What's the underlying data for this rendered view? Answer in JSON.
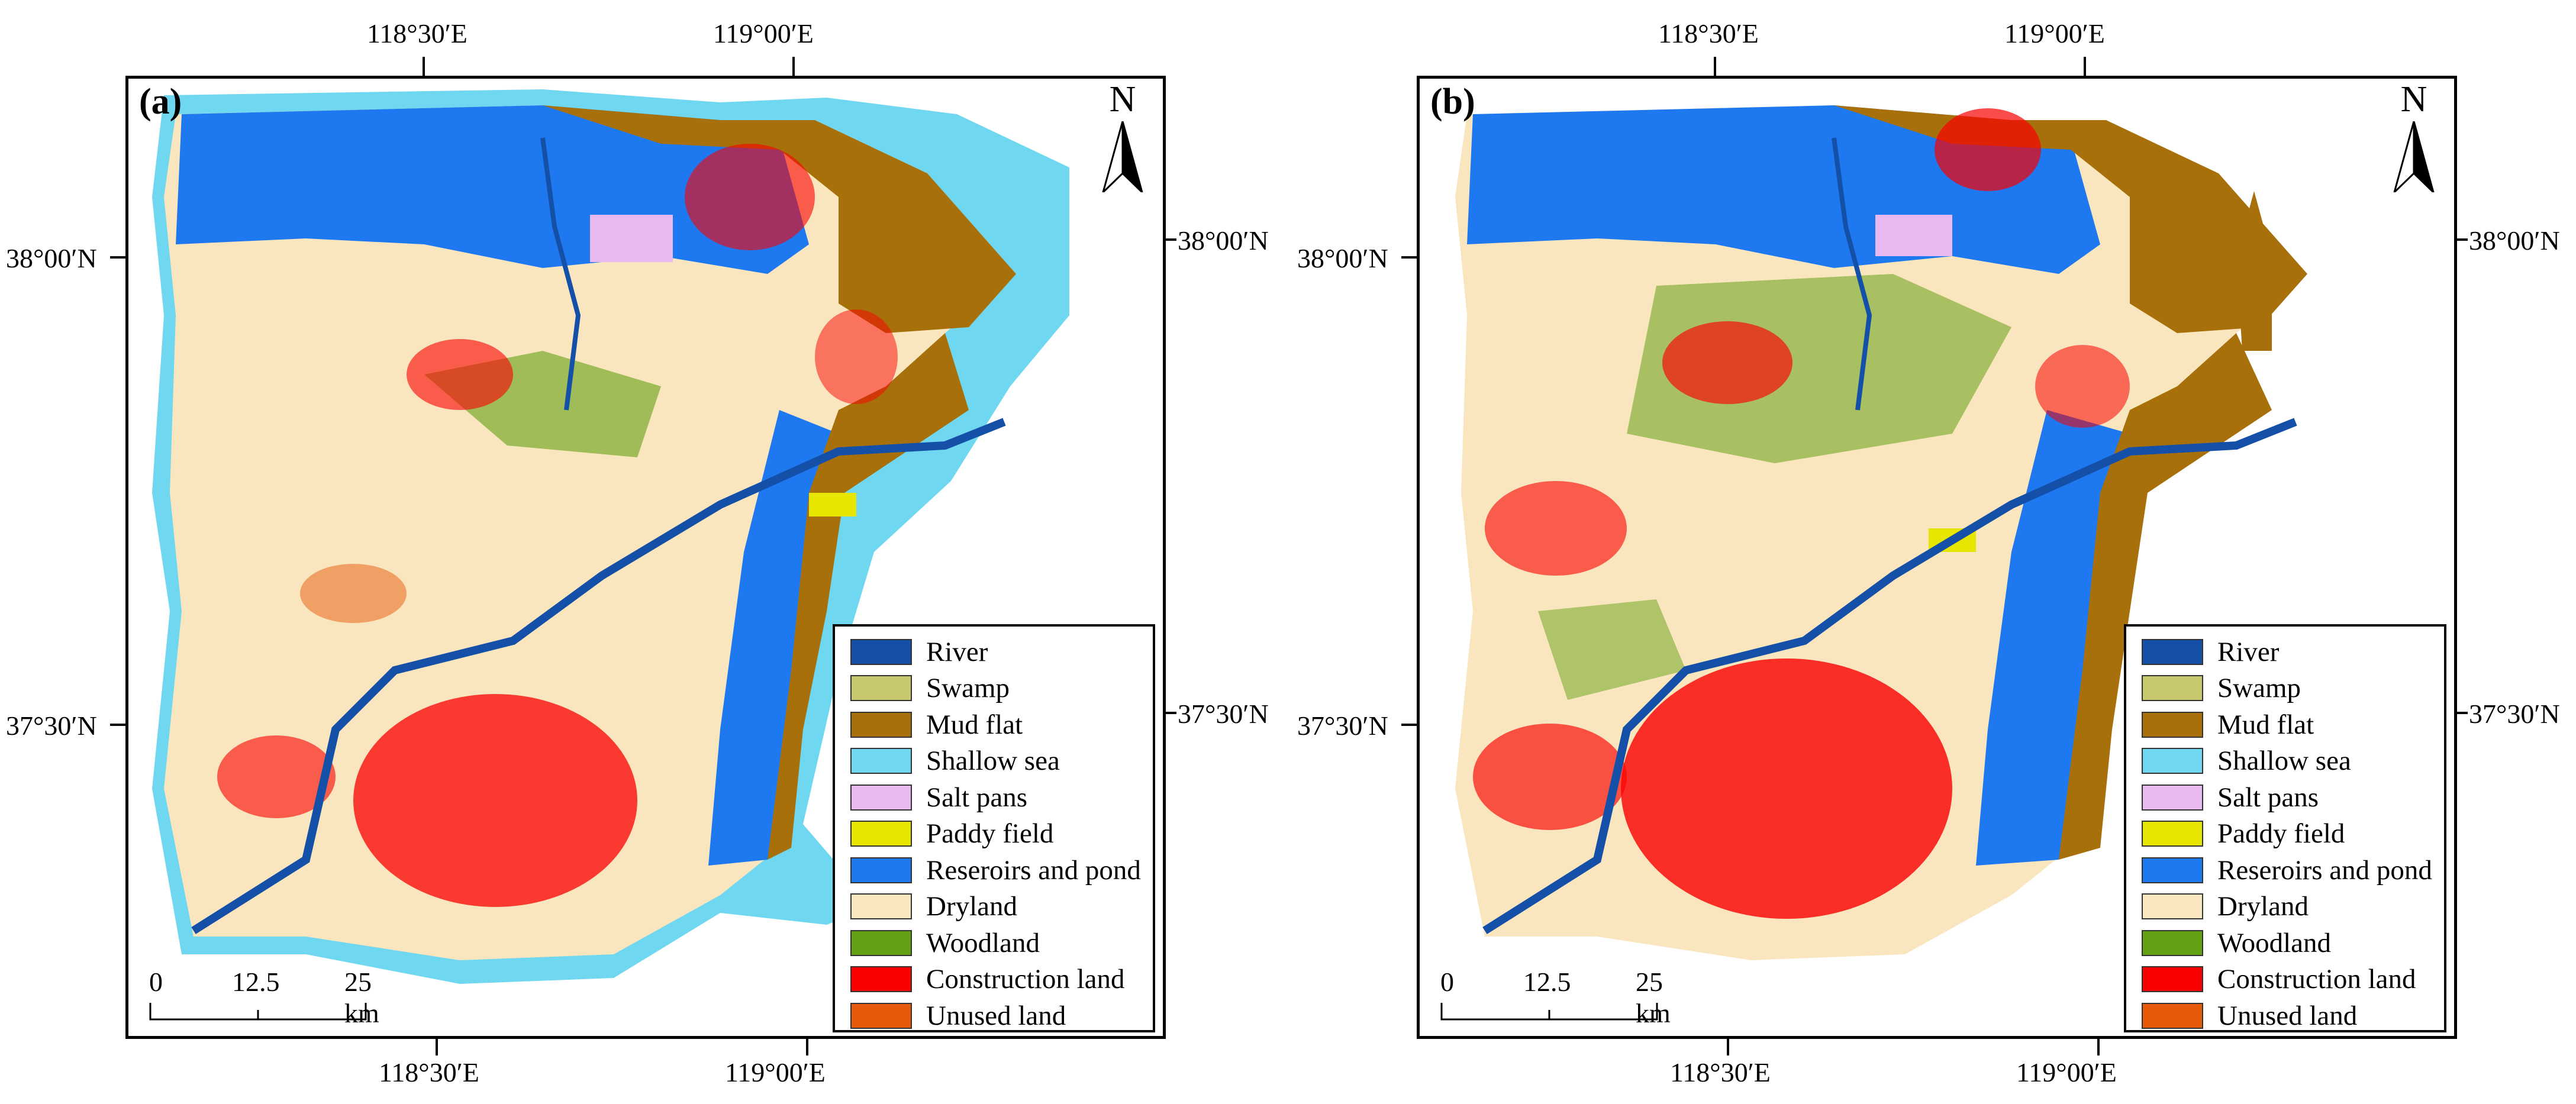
{
  "figure": {
    "panels": [
      {
        "label": "(a)"
      },
      {
        "label": "(b)"
      }
    ],
    "top_axis_labels": [
      "118°30′E",
      "119°00′E"
    ],
    "bottom_axis_labels": [
      "118°30′E",
      "119°00′E"
    ],
    "left_axis_labels": [
      "38°00′N",
      "37°30′N"
    ],
    "right_axis_labels": [
      "38°00′N",
      "37°30′N"
    ],
    "north_arrow": {
      "label": "N",
      "icon": "north-arrow-icon"
    },
    "scale_bar": {
      "ticks": [
        "0",
        "12.5",
        "25 km"
      ]
    },
    "legend": [
      {
        "label": "River",
        "color": "#1550a8"
      },
      {
        "label": "Swamp",
        "color": "#c8c86e"
      },
      {
        "label": "Mud flat",
        "color": "#a8700a"
      },
      {
        "label": "Shallow sea",
        "color": "#6fd8f0"
      },
      {
        "label": "Salt pans",
        "color": "#e8b8f0"
      },
      {
        "label": "Paddy field",
        "color": "#e6e600"
      },
      {
        "label": "Reseroirs and pond",
        "color": "#1e78f0"
      },
      {
        "label": "Dryland",
        "color": "#fae6be"
      },
      {
        "label": "Woodland",
        "color": "#64a014"
      },
      {
        "label": "Construction land",
        "color": "#fa0000"
      },
      {
        "label": "Unused land",
        "color": "#e65a0a"
      }
    ]
  }
}
